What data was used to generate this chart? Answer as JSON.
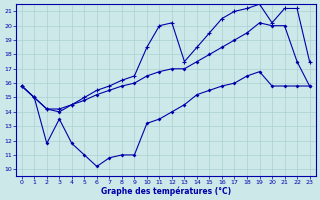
{
  "xlabel": "Graphe des températures (°C)",
  "xlim": [
    -0.5,
    23.5
  ],
  "ylim": [
    9.5,
    21.5
  ],
  "xticks": [
    0,
    1,
    2,
    3,
    4,
    5,
    6,
    7,
    8,
    9,
    10,
    11,
    12,
    13,
    14,
    15,
    16,
    17,
    18,
    19,
    20,
    21,
    22,
    23
  ],
  "yticks": [
    10,
    11,
    12,
    13,
    14,
    15,
    16,
    17,
    18,
    19,
    20,
    21
  ],
  "bg_color": "#cce8e8",
  "grid_color": "#aad0d0",
  "line_color": "#0000aa",
  "line1_x": [
    0,
    1,
    2,
    3,
    4,
    5,
    6,
    7,
    8,
    9,
    10,
    11,
    12,
    13,
    14,
    15,
    16,
    17,
    18,
    19,
    20,
    21,
    22,
    23
  ],
  "line1_y": [
    15.8,
    15.0,
    11.8,
    13.5,
    11.8,
    11.0,
    10.2,
    10.8,
    11.0,
    11.0,
    13.2,
    13.5,
    14.0,
    14.5,
    15.2,
    15.5,
    15.8,
    16.0,
    16.5,
    16.8,
    15.8,
    15.8,
    15.8,
    15.8
  ],
  "line2_x": [
    0,
    1,
    2,
    3,
    4,
    5,
    6,
    7,
    8,
    9,
    10,
    11,
    12,
    13,
    14,
    15,
    16,
    17,
    18,
    19,
    20,
    21,
    22,
    23
  ],
  "line2_y": [
    15.8,
    15.0,
    14.2,
    14.0,
    14.5,
    14.8,
    15.2,
    15.5,
    15.8,
    16.0,
    16.5,
    16.8,
    17.0,
    17.0,
    17.5,
    18.0,
    18.5,
    19.0,
    19.5,
    20.2,
    20.0,
    20.0,
    17.5,
    15.8
  ],
  "line3_x": [
    0,
    1,
    2,
    3,
    4,
    5,
    6,
    7,
    8,
    9,
    10,
    11,
    12,
    13,
    14,
    15,
    16,
    17,
    18,
    19,
    20,
    21,
    22,
    23
  ],
  "line3_y": [
    15.8,
    15.0,
    14.2,
    14.2,
    14.5,
    15.0,
    15.5,
    15.8,
    16.2,
    16.5,
    18.5,
    20.0,
    20.2,
    17.5,
    18.5,
    19.5,
    20.5,
    21.0,
    21.2,
    21.5,
    20.2,
    21.2,
    21.2,
    17.5
  ]
}
